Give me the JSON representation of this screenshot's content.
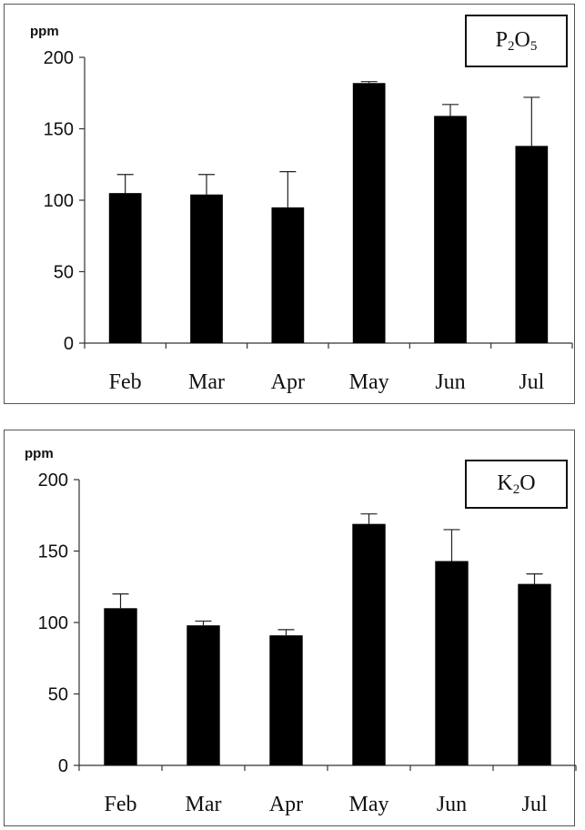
{
  "chart_data": [
    {
      "type": "bar",
      "title": "",
      "legend_label_parts": [
        "P",
        "2",
        "O",
        "5"
      ],
      "legend_placement": "top-right",
      "ylabel": "ppm",
      "xlabel": "",
      "ylim": [
        0,
        200
      ],
      "yticks": [
        0,
        50,
        100,
        150,
        200
      ],
      "categories": [
        "Feb",
        "Mar",
        "Apr",
        "May",
        "Jun",
        "Jul"
      ],
      "values": [
        105,
        104,
        95,
        182,
        159,
        138
      ],
      "error_upper": [
        118,
        118,
        120,
        183,
        167,
        172
      ],
      "bar_color": "#000000",
      "grid": false
    },
    {
      "type": "bar",
      "title": "",
      "legend_label_parts": [
        "K",
        "2",
        "O"
      ],
      "legend_placement": "top-right",
      "ylabel": "ppm",
      "xlabel": "",
      "ylim": [
        0,
        200
      ],
      "yticks": [
        0,
        50,
        100,
        150,
        200
      ],
      "categories": [
        "Feb",
        "Mar",
        "Apr",
        "May",
        "Jun",
        "Jul"
      ],
      "values": [
        110,
        98,
        91,
        169,
        143,
        127
      ],
      "error_upper": [
        120,
        101,
        95,
        176,
        165,
        134
      ],
      "bar_color": "#000000",
      "grid": false
    }
  ]
}
